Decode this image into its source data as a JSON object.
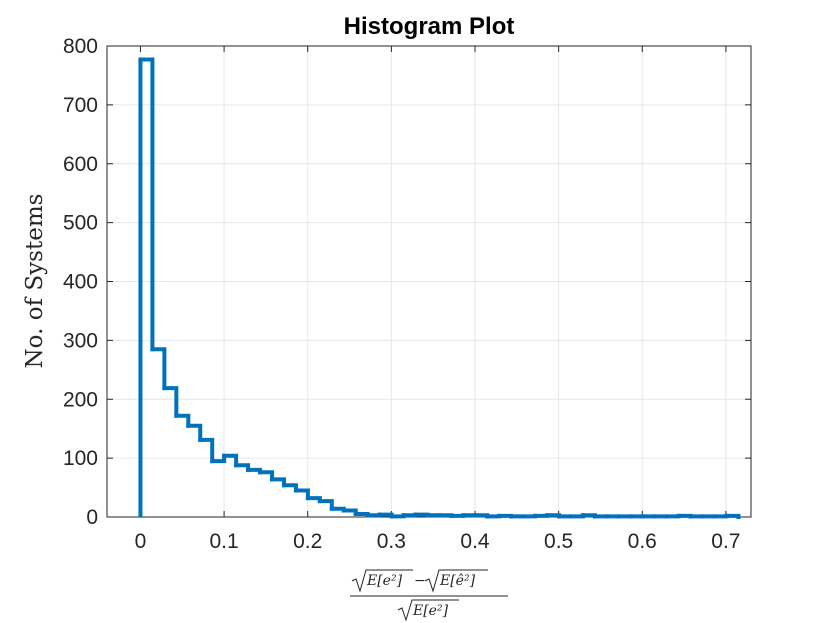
{
  "chart_data": {
    "type": "histogram",
    "title": "Histogram Plot",
    "ylabel": "No.  of Systems",
    "xlabel": {
      "numerator_left": "E[e²]",
      "minus": "−",
      "numerator_right": "E[ê²]",
      "denominator": "E[e²]"
    },
    "xlim": [
      -0.04,
      0.73
    ],
    "ylim": [
      0,
      800
    ],
    "xticks": [
      0,
      0.1,
      0.2,
      0.3,
      0.4,
      0.5,
      0.6,
      0.7
    ],
    "xtick_labels": [
      "0",
      "0.1",
      "0.2",
      "0.3",
      "0.4",
      "0.5",
      "0.6",
      "0.7"
    ],
    "yticks": [
      0,
      100,
      200,
      300,
      400,
      500,
      600,
      700,
      800
    ],
    "ytick_labels": [
      "0",
      "100",
      "200",
      "300",
      "400",
      "500",
      "600",
      "700",
      "800"
    ],
    "grid": true,
    "bin_width": 0.0143,
    "bin_start": 0,
    "counts": [
      777,
      285,
      219,
      172,
      155,
      131,
      95,
      104,
      88,
      80,
      76,
      64,
      54,
      45,
      32,
      27,
      14,
      11,
      5,
      3,
      4,
      1,
      3,
      4,
      3,
      3,
      2,
      3,
      3,
      1,
      2,
      1,
      1,
      2,
      3,
      1,
      1,
      3,
      1,
      1,
      1,
      1,
      1,
      1,
      1,
      2,
      1,
      1,
      1,
      2
    ],
    "series_color": "#0072BD"
  }
}
